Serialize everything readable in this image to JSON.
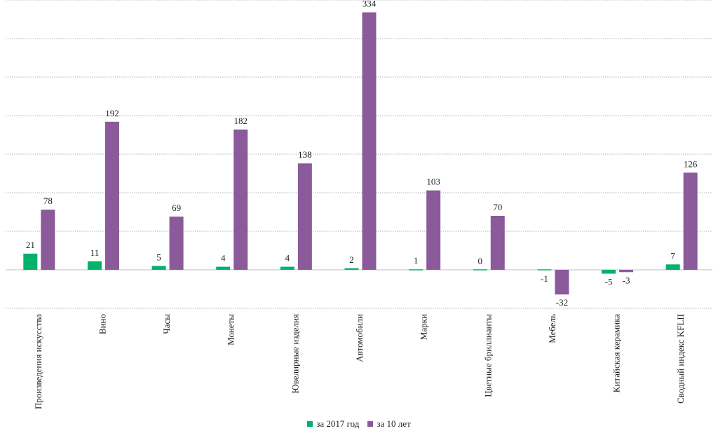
{
  "chart_data": {
    "type": "bar",
    "categories": [
      "Произведения искусства",
      "Вино",
      "Часы",
      "Монеты",
      "Ювелирные изделия",
      "Автомобили",
      "Марки",
      "Цветные бриллианты",
      "Мебель",
      "Китайская керамика",
      "Сводный индекс KFLII"
    ],
    "series": [
      {
        "name": "за 2017 год",
        "color": "#00b26a",
        "values": [
          21,
          11,
          5,
          4,
          4,
          2,
          1,
          0,
          -1,
          -5,
          7
        ]
      },
      {
        "name": "за 10 лет",
        "color": "#8b5a9a",
        "values": [
          78,
          192,
          69,
          182,
          138,
          334,
          103,
          70,
          -32,
          -3,
          126
        ]
      }
    ],
    "ylim": [
      -50,
      350
    ],
    "grid": true,
    "legend": "bottom-center"
  }
}
